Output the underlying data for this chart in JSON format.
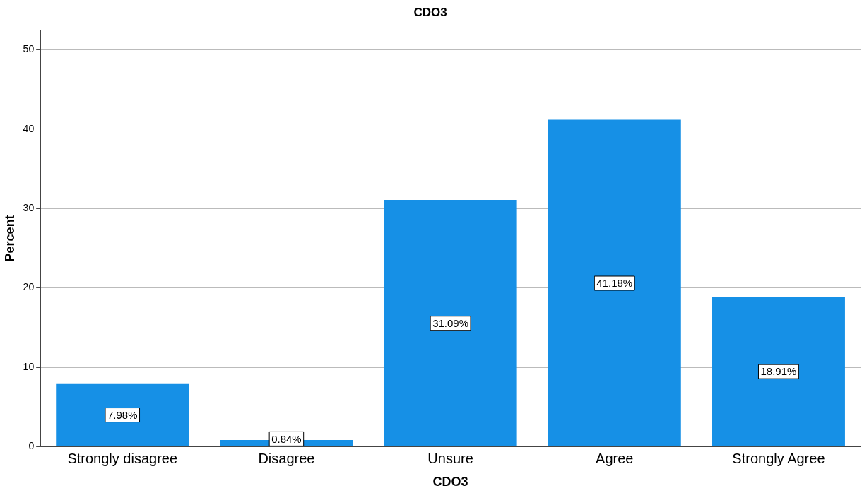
{
  "chart_data": {
    "type": "bar",
    "title": "CDO3",
    "xlabel": "CDO3",
    "ylabel": "Percent",
    "categories": [
      "Strongly disagree",
      "Disagree",
      "Unsure",
      "Agree",
      "Strongly Agree"
    ],
    "values": [
      7.98,
      0.84,
      31.09,
      41.18,
      18.91
    ],
    "value_labels": [
      "7.98%",
      "0.84%",
      "31.09%",
      "41.18%",
      "18.91%"
    ],
    "color": "#1690e6",
    "ylim": [
      0,
      52.5
    ],
    "yticks": [
      0,
      10,
      20,
      30,
      40,
      50
    ],
    "grid": "y",
    "legend": false
  }
}
